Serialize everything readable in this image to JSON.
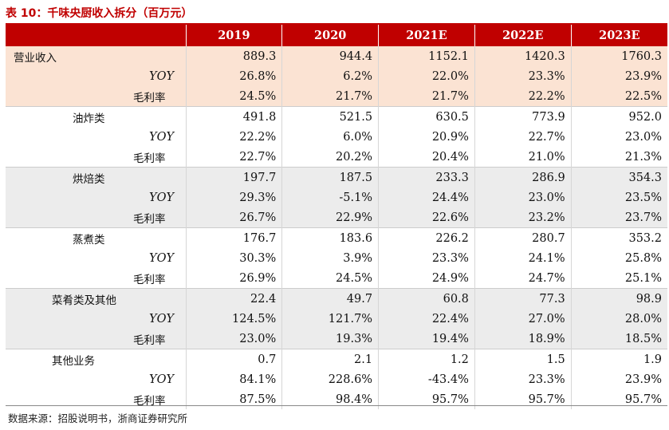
{
  "title": "表 10：千味央厨收入拆分（百万元）",
  "columns": [
    "",
    "2019",
    "2020",
    "2021E",
    "2022E",
    "2023E"
  ],
  "rows": [
    {
      "label": "营业收入",
      "level": "lv0",
      "bg": "hl",
      "sep": false,
      "values": [
        "889.3",
        "944.4",
        "1152.1",
        "1420.3",
        "1760.3"
      ]
    },
    {
      "label": "YOY",
      "level": "yoy",
      "bg": "hl",
      "sep": false,
      "values": [
        "26.8%",
        "6.2%",
        "22.0%",
        "23.3%",
        "23.9%"
      ]
    },
    {
      "label": "毛利率",
      "level": "mlr",
      "bg": "hl",
      "sep": false,
      "values": [
        "24.5%",
        "21.7%",
        "21.7%",
        "22.2%",
        "22.5%"
      ]
    },
    {
      "label": "油炸类",
      "level": "lv1",
      "bg": "wh",
      "sep": true,
      "values": [
        "491.8",
        "521.5",
        "630.5",
        "773.9",
        "952.0"
      ]
    },
    {
      "label": "YOY",
      "level": "yoy",
      "bg": "wh",
      "sep": false,
      "values": [
        "22.2%",
        "6.0%",
        "20.9%",
        "22.7%",
        "23.0%"
      ]
    },
    {
      "label": "毛利率",
      "level": "mlr",
      "bg": "wh",
      "sep": false,
      "values": [
        "22.7%",
        "20.2%",
        "20.4%",
        "21.0%",
        "21.3%"
      ]
    },
    {
      "label": "烘焙类",
      "level": "lv1",
      "bg": "gr",
      "sep": true,
      "values": [
        "197.7",
        "187.5",
        "233.3",
        "286.9",
        "354.3"
      ]
    },
    {
      "label": "YOY",
      "level": "yoy",
      "bg": "gr",
      "sep": false,
      "values": [
        "29.3%",
        "-5.1%",
        "24.4%",
        "23.0%",
        "23.5%"
      ]
    },
    {
      "label": "毛利率",
      "level": "mlr",
      "bg": "gr",
      "sep": false,
      "values": [
        "26.7%",
        "22.9%",
        "22.6%",
        "23.2%",
        "23.7%"
      ]
    },
    {
      "label": "蒸煮类",
      "level": "lv1",
      "bg": "wh",
      "sep": true,
      "values": [
        "176.7",
        "183.6",
        "226.2",
        "280.7",
        "353.2"
      ]
    },
    {
      "label": "YOY",
      "level": "yoy",
      "bg": "wh",
      "sep": false,
      "values": [
        "30.3%",
        "3.9%",
        "23.3%",
        "24.1%",
        "25.8%"
      ]
    },
    {
      "label": "毛利率",
      "level": "mlr",
      "bg": "wh",
      "sep": false,
      "values": [
        "26.9%",
        "24.5%",
        "24.9%",
        "24.7%",
        "25.1%"
      ]
    },
    {
      "label": "菜肴类及其他",
      "level": "lv1w",
      "bg": "gr",
      "sep": true,
      "values": [
        "22.4",
        "49.7",
        "60.8",
        "77.3",
        "98.9"
      ]
    },
    {
      "label": "YOY",
      "level": "yoy",
      "bg": "gr",
      "sep": false,
      "values": [
        "124.5%",
        "121.7%",
        "22.4%",
        "27.0%",
        "28.0%"
      ]
    },
    {
      "label": "毛利率",
      "level": "mlr",
      "bg": "gr",
      "sep": false,
      "values": [
        "23.0%",
        "19.3%",
        "19.4%",
        "18.9%",
        "18.5%"
      ]
    },
    {
      "label": "其他业务",
      "level": "lv1w",
      "bg": "wh",
      "sep": true,
      "values": [
        "0.7",
        "2.1",
        "1.2",
        "1.5",
        "1.9"
      ]
    },
    {
      "label": "YOY",
      "level": "yoy",
      "bg": "wh",
      "sep": false,
      "values": [
        "84.1%",
        "228.6%",
        "-43.4%",
        "23.3%",
        "23.9%"
      ]
    },
    {
      "label": "毛利率",
      "level": "mlr",
      "bg": "wh",
      "sep": false,
      "values": [
        "87.5%",
        "98.4%",
        "95.7%",
        "95.7%",
        "95.7%"
      ]
    }
  ],
  "source": "数据来源：招股说明书，浙商证券研究所",
  "colors": {
    "accent": "#c00000",
    "highlight": "#fbe3d3",
    "band": "#ececec"
  }
}
